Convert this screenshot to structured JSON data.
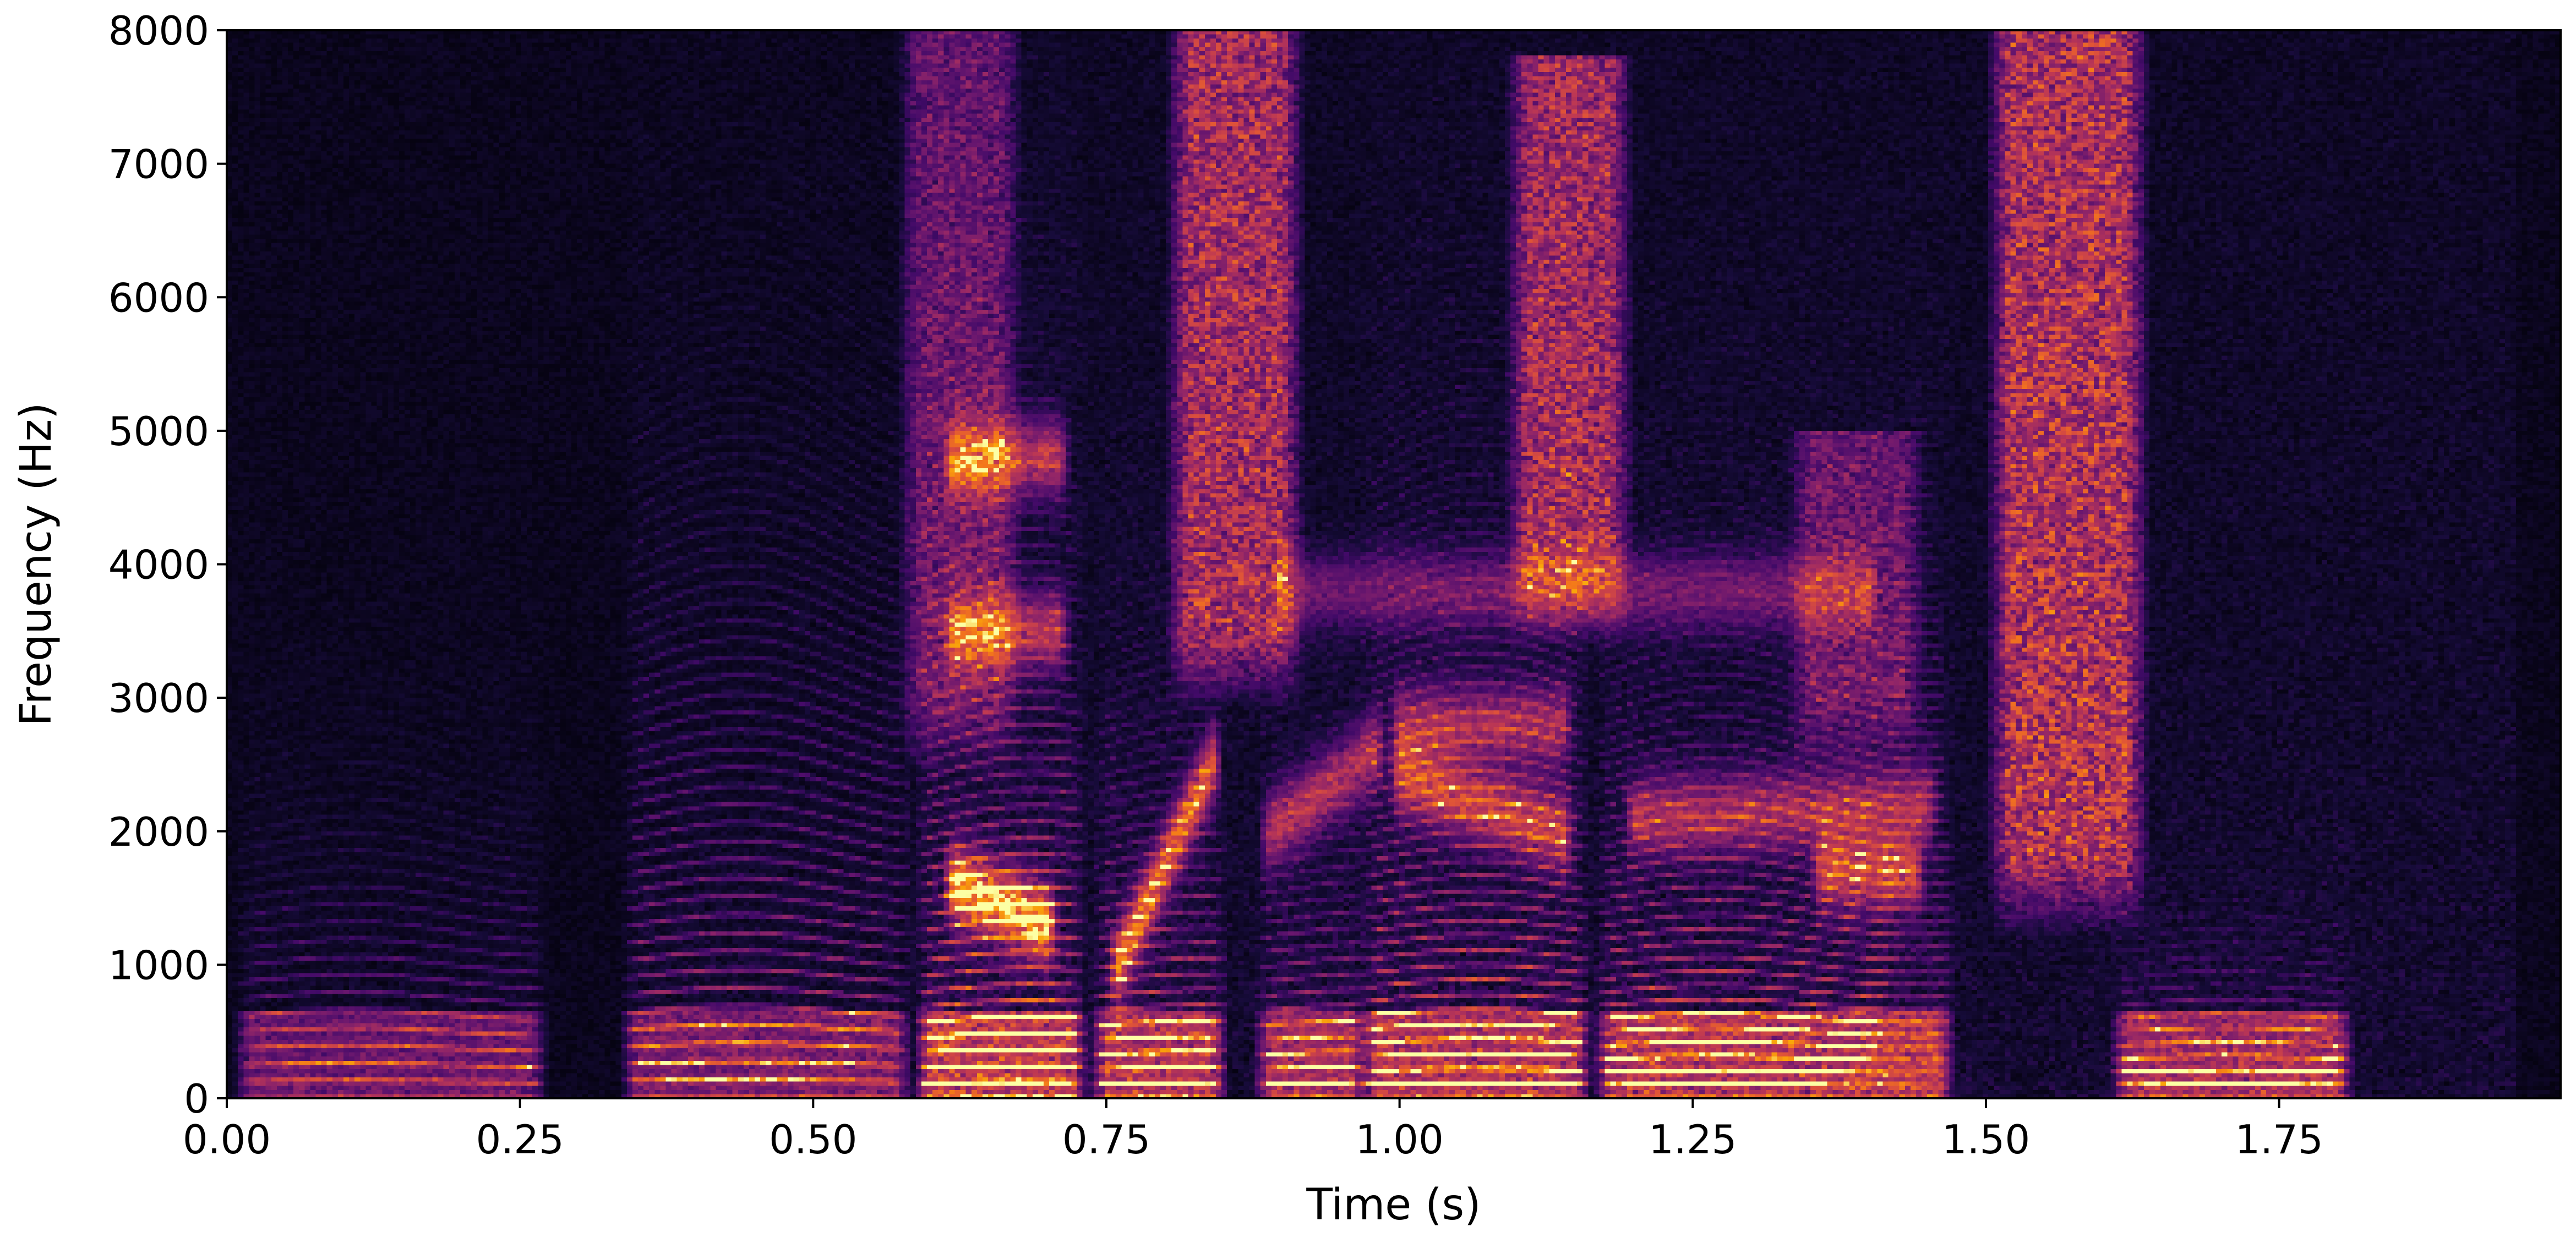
{
  "chart_data": {
    "type": "heatmap",
    "subtype": "spectrogram",
    "colormap": "inferno",
    "title": "",
    "xlabel": "Time (s)",
    "ylabel": "Frequency (Hz)",
    "xlim": [
      0.0,
      1.99
    ],
    "ylim": [
      0,
      8000
    ],
    "x_ticks": [
      0.0,
      0.25,
      0.5,
      0.75,
      1.0,
      1.25,
      1.5,
      1.75
    ],
    "x_tick_labels": [
      "0.00",
      "0.25",
      "0.50",
      "0.75",
      "1.00",
      "1.25",
      "1.50",
      "1.75"
    ],
    "y_ticks": [
      0,
      1000,
      2000,
      3000,
      4000,
      5000,
      6000,
      7000,
      8000
    ],
    "y_tick_labels": [
      "0",
      "1000",
      "2000",
      "3000",
      "4000",
      "5000",
      "6000",
      "7000",
      "8000"
    ],
    "grid": false,
    "legend": "none",
    "voiced_segments": [
      {
        "t0": 0.02,
        "t1": 0.26,
        "f0": 125,
        "maxf": 1800,
        "amp": 0.62
      },
      {
        "t0": 0.35,
        "t1": 0.57,
        "f0": 130,
        "maxf": 4200,
        "amp": 0.72
      },
      {
        "t0": 0.6,
        "t1": 0.72,
        "f0": 115,
        "maxf": 4000,
        "amp": 1.0
      },
      {
        "t0": 0.75,
        "t1": 0.84,
        "f0": 110,
        "maxf": 2500,
        "amp": 0.92
      },
      {
        "t0": 0.89,
        "t1": 0.96,
        "f0": 110,
        "maxf": 2000,
        "amp": 0.8
      },
      {
        "t0": 0.98,
        "t1": 1.15,
        "f0": 105,
        "maxf": 3800,
        "amp": 0.9
      },
      {
        "t0": 1.18,
        "t1": 1.46,
        "f0": 100,
        "maxf": 3000,
        "amp": 0.92
      },
      {
        "t0": 1.62,
        "t1": 1.8,
        "f0": 100,
        "maxf": 800,
        "amp": 0.85
      }
    ],
    "fricative_segments": [
      {
        "t0": 0.59,
        "t1": 0.66,
        "flo": 3000,
        "fhi": 8000,
        "amp": 0.45
      },
      {
        "t0": 0.82,
        "t1": 0.9,
        "flo": 3500,
        "fhi": 8000,
        "amp": 0.75
      },
      {
        "t0": 1.11,
        "t1": 1.18,
        "flo": 4000,
        "fhi": 7800,
        "amp": 0.72
      },
      {
        "t0": 1.52,
        "t1": 1.62,
        "flo": 1800,
        "fhi": 8000,
        "amp": 0.8
      },
      {
        "t0": 1.35,
        "t1": 1.43,
        "flo": 3000,
        "fhi": 5000,
        "amp": 0.45
      }
    ],
    "formant_tracks": [
      {
        "t0": 0.62,
        "t1": 0.71,
        "f_start": 4800,
        "f_end": 4800,
        "amp": 0.6
      },
      {
        "t0": 0.62,
        "t1": 0.71,
        "f_start": 3500,
        "f_end": 3500,
        "amp": 0.55
      },
      {
        "t0": 0.62,
        "t1": 0.7,
        "f_start": 1600,
        "f_end": 1300,
        "amp": 0.9
      },
      {
        "t0": 0.76,
        "t1": 0.84,
        "f_start": 1000,
        "f_end": 2500,
        "amp": 0.75
      },
      {
        "t0": 0.89,
        "t1": 0.98,
        "f_start": 2000,
        "f_end": 2600,
        "amp": 0.55
      },
      {
        "t0": 1.0,
        "t1": 1.14,
        "f_start": 2400,
        "f_end": 2000,
        "amp": 0.6
      },
      {
        "t0": 1.0,
        "t1": 1.14,
        "f_start": 2800,
        "f_end": 2800,
        "amp": 0.5
      },
      {
        "t0": 1.2,
        "t1": 1.45,
        "f_start": 2100,
        "f_end": 2200,
        "amp": 0.5
      },
      {
        "t0": 1.36,
        "t1": 1.44,
        "f_start": 1700,
        "f_end": 1700,
        "amp": 0.6
      },
      {
        "t0": 0.9,
        "t1": 1.4,
        "f_start": 3800,
        "f_end": 3800,
        "amp": 0.35
      }
    ]
  }
}
